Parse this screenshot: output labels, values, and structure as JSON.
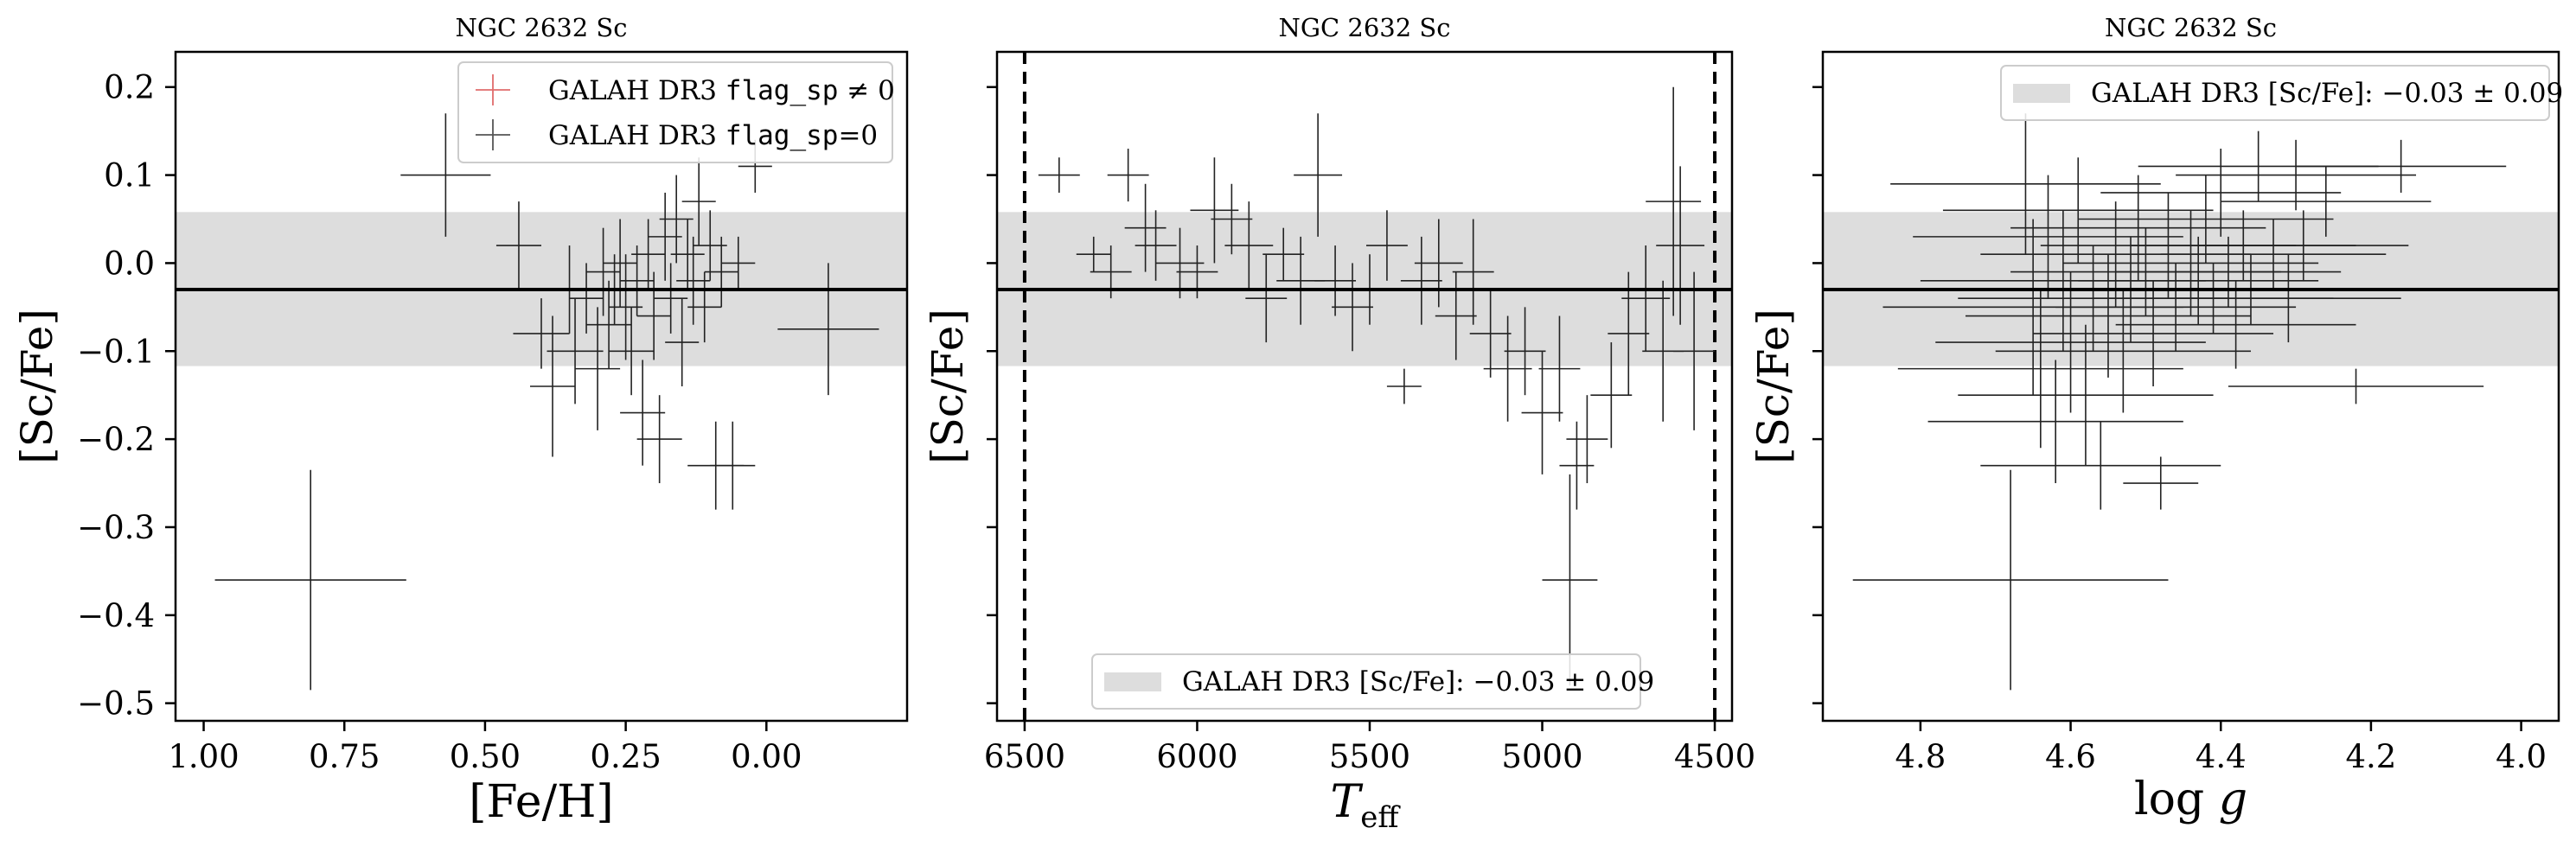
{
  "chart_data": [
    {
      "type": "scatter",
      "title": "NGC 2632 Sc",
      "xlabel": "[Fe/H]",
      "ylabel": "[Sc/Fe]",
      "xlim": [
        1.05,
        -0.25
      ],
      "ylim": [
        -0.52,
        0.24
      ],
      "xticks": [
        1.0,
        0.75,
        0.5,
        0.25,
        0.0
      ],
      "xtick_labels": [
        "1.00",
        "0.75",
        "0.50",
        "0.25",
        "0.00"
      ],
      "yticks": [
        0.2,
        0.1,
        0.0,
        -0.1,
        -0.2,
        -0.3,
        -0.4,
        -0.5
      ],
      "ytick_labels": [
        "0.2",
        "0.1",
        "0.0",
        "−0.1",
        "−0.2",
        "−0.3",
        "−0.4",
        "−0.5"
      ],
      "reference_line": -0.03,
      "band": [
        -0.117,
        0.058
      ],
      "legend": {
        "placement": "top-right",
        "entries": [
          {
            "pre": "GALAH DR3 ",
            "code": "flag_sp",
            "post": " ≠ 0",
            "color": "#e06c6c"
          },
          {
            "pre": "GALAH DR3 ",
            "code": "flag_sp",
            "post": "=0",
            "color": "#555555"
          }
        ]
      },
      "series": [
        {
          "flag_sp": 0,
          "color": "#222222",
          "points": [
            {
              "x": 0.81,
              "y": -0.36,
              "xerr": 0.17,
              "yerr": 0.125
            },
            {
              "x": 0.57,
              "y": 0.1,
              "xerr": 0.08,
              "yerr": 0.07
            },
            {
              "x": 0.44,
              "y": 0.02,
              "xerr": 0.04,
              "yerr": 0.05
            },
            {
              "x": 0.4,
              "y": -0.08,
              "xerr": 0.05,
              "yerr": 0.04
            },
            {
              "x": 0.38,
              "y": -0.14,
              "xerr": 0.04,
              "yerr": 0.08
            },
            {
              "x": 0.35,
              "y": -0.03,
              "xerr": 0.04,
              "yerr": 0.05
            },
            {
              "x": 0.34,
              "y": -0.1,
              "xerr": 0.05,
              "yerr": 0.06
            },
            {
              "x": 0.32,
              "y": -0.04,
              "xerr": 0.03,
              "yerr": 0.04
            },
            {
              "x": 0.3,
              "y": -0.12,
              "xerr": 0.04,
              "yerr": 0.07
            },
            {
              "x": 0.29,
              "y": -0.01,
              "xerr": 0.03,
              "yerr": 0.05
            },
            {
              "x": 0.28,
              "y": -0.07,
              "xerr": 0.04,
              "yerr": 0.05
            },
            {
              "x": 0.27,
              "y": -0.03,
              "xerr": 0.03,
              "yerr": 0.04
            },
            {
              "x": 0.26,
              "y": 0.0,
              "xerr": 0.03,
              "yerr": 0.05
            },
            {
              "x": 0.25,
              "y": -0.05,
              "xerr": 0.03,
              "yerr": 0.06
            },
            {
              "x": 0.24,
              "y": -0.1,
              "xerr": 0.04,
              "yerr": 0.05
            },
            {
              "x": 0.23,
              "y": -0.02,
              "xerr": 0.03,
              "yerr": 0.04
            },
            {
              "x": 0.22,
              "y": -0.17,
              "xerr": 0.04,
              "yerr": 0.06
            },
            {
              "x": 0.21,
              "y": 0.01,
              "xerr": 0.03,
              "yerr": 0.04
            },
            {
              "x": 0.2,
              "y": -0.06,
              "xerr": 0.03,
              "yerr": 0.05
            },
            {
              "x": 0.19,
              "y": -0.2,
              "xerr": 0.04,
              "yerr": 0.05
            },
            {
              "x": 0.18,
              "y": 0.03,
              "xerr": 0.03,
              "yerr": 0.05
            },
            {
              "x": 0.17,
              "y": -0.04,
              "xerr": 0.03,
              "yerr": 0.04
            },
            {
              "x": 0.16,
              "y": 0.05,
              "xerr": 0.03,
              "yerr": 0.05
            },
            {
              "x": 0.15,
              "y": -0.09,
              "xerr": 0.03,
              "yerr": 0.05
            },
            {
              "x": 0.14,
              "y": 0.01,
              "xerr": 0.03,
              "yerr": 0.04
            },
            {
              "x": 0.13,
              "y": -0.02,
              "xerr": 0.03,
              "yerr": 0.05
            },
            {
              "x": 0.12,
              "y": 0.07,
              "xerr": 0.03,
              "yerr": 0.05
            },
            {
              "x": 0.11,
              "y": -0.05,
              "xerr": 0.03,
              "yerr": 0.04
            },
            {
              "x": 0.1,
              "y": 0.02,
              "xerr": 0.03,
              "yerr": 0.04
            },
            {
              "x": 0.09,
              "y": -0.23,
              "xerr": 0.05,
              "yerr": 0.05
            },
            {
              "x": 0.08,
              "y": -0.01,
              "xerr": 0.03,
              "yerr": 0.04
            },
            {
              "x": 0.06,
              "y": -0.23,
              "xerr": 0.04,
              "yerr": 0.05
            },
            {
              "x": 0.05,
              "y": 0.0,
              "xerr": 0.03,
              "yerr": 0.03
            },
            {
              "x": 0.02,
              "y": 0.11,
              "xerr": 0.03,
              "yerr": 0.03
            },
            {
              "x": -0.11,
              "y": -0.075,
              "xerr": 0.09,
              "yerr": 0.075
            }
          ]
        }
      ]
    },
    {
      "type": "scatter",
      "title": "NGC 2632 Sc",
      "xlabel": "T_eff",
      "ylabel": "[Sc/Fe]",
      "xlim": [
        6580,
        4450
      ],
      "ylim": [
        -0.52,
        0.24
      ],
      "xticks": [
        6500,
        6000,
        5500,
        5000,
        4500
      ],
      "xtick_labels": [
        "6500",
        "6000",
        "5500",
        "5000",
        "4500"
      ],
      "yticks": [
        0.2,
        0.1,
        0.0,
        -0.1,
        -0.2,
        -0.3,
        -0.4,
        -0.5
      ],
      "reference_line": -0.03,
      "band": [
        -0.117,
        0.058
      ],
      "vlines": [
        6500,
        4500
      ],
      "legend": {
        "placement": "bottom-center",
        "entries": [
          {
            "pre": "GALAH DR3 [Sc/Fe]: ",
            "math": "−0.03 ± 0.09",
            "swatch": "#dddddd"
          }
        ]
      },
      "series": [
        {
          "flag_sp": 0,
          "color": "#222222",
          "points": [
            {
              "x": 6400,
              "y": 0.1,
              "xerr": 60,
              "yerr": 0.02
            },
            {
              "x": 6300,
              "y": 0.01,
              "xerr": 50,
              "yerr": 0.02
            },
            {
              "x": 6250,
              "y": -0.01,
              "xerr": 60,
              "yerr": 0.03
            },
            {
              "x": 6200,
              "y": 0.1,
              "xerr": 60,
              "yerr": 0.03
            },
            {
              "x": 6150,
              "y": 0.04,
              "xerr": 60,
              "yerr": 0.05
            },
            {
              "x": 6120,
              "y": 0.02,
              "xerr": 60,
              "yerr": 0.04
            },
            {
              "x": 6050,
              "y": 0.0,
              "xerr": 70,
              "yerr": 0.04
            },
            {
              "x": 6000,
              "y": -0.01,
              "xerr": 60,
              "yerr": 0.03
            },
            {
              "x": 5950,
              "y": 0.06,
              "xerr": 70,
              "yerr": 0.06
            },
            {
              "x": 5900,
              "y": 0.05,
              "xerr": 60,
              "yerr": 0.04
            },
            {
              "x": 5850,
              "y": 0.02,
              "xerr": 70,
              "yerr": 0.05
            },
            {
              "x": 5800,
              "y": -0.04,
              "xerr": 60,
              "yerr": 0.05
            },
            {
              "x": 5750,
              "y": 0.01,
              "xerr": 60,
              "yerr": 0.03
            },
            {
              "x": 5700,
              "y": -0.02,
              "xerr": 70,
              "yerr": 0.05
            },
            {
              "x": 5650,
              "y": 0.1,
              "xerr": 70,
              "yerr": 0.07
            },
            {
              "x": 5600,
              "y": -0.02,
              "xerr": 60,
              "yerr": 0.04
            },
            {
              "x": 5550,
              "y": -0.05,
              "xerr": 60,
              "yerr": 0.05
            },
            {
              "x": 5500,
              "y": -0.03,
              "xerr": 60,
              "yerr": 0.04
            },
            {
              "x": 5450,
              "y": 0.02,
              "xerr": 60,
              "yerr": 0.04
            },
            {
              "x": 5400,
              "y": -0.14,
              "xerr": 50,
              "yerr": 0.02
            },
            {
              "x": 5350,
              "y": -0.02,
              "xerr": 60,
              "yerr": 0.05
            },
            {
              "x": 5300,
              "y": 0.0,
              "xerr": 70,
              "yerr": 0.05
            },
            {
              "x": 5250,
              "y": -0.06,
              "xerr": 60,
              "yerr": 0.05
            },
            {
              "x": 5200,
              "y": -0.01,
              "xerr": 60,
              "yerr": 0.06
            },
            {
              "x": 5150,
              "y": -0.08,
              "xerr": 60,
              "yerr": 0.05
            },
            {
              "x": 5100,
              "y": -0.12,
              "xerr": 70,
              "yerr": 0.06
            },
            {
              "x": 5050,
              "y": -0.1,
              "xerr": 60,
              "yerr": 0.05
            },
            {
              "x": 5000,
              "y": -0.17,
              "xerr": 60,
              "yerr": 0.07
            },
            {
              "x": 4950,
              "y": -0.12,
              "xerr": 60,
              "yerr": 0.06
            },
            {
              "x": 4920,
              "y": -0.36,
              "xerr": 80,
              "yerr": 0.12
            },
            {
              "x": 4900,
              "y": -0.23,
              "xerr": 50,
              "yerr": 0.05
            },
            {
              "x": 4870,
              "y": -0.2,
              "xerr": 60,
              "yerr": 0.05
            },
            {
              "x": 4800,
              "y": -0.15,
              "xerr": 60,
              "yerr": 0.06
            },
            {
              "x": 4750,
              "y": -0.08,
              "xerr": 60,
              "yerr": 0.07
            },
            {
              "x": 4700,
              "y": -0.04,
              "xerr": 70,
              "yerr": 0.06
            },
            {
              "x": 4650,
              "y": -0.1,
              "xerr": 60,
              "yerr": 0.08
            },
            {
              "x": 4620,
              "y": 0.07,
              "xerr": 80,
              "yerr": 0.13
            },
            {
              "x": 4600,
              "y": 0.02,
              "xerr": 70,
              "yerr": 0.09
            },
            {
              "x": 4560,
              "y": -0.1,
              "xerr": 60,
              "yerr": 0.09
            }
          ]
        }
      ]
    },
    {
      "type": "scatter",
      "title": "NGC 2632 Sc",
      "xlabel": "log g",
      "ylabel": "[Sc/Fe]",
      "xlim": [
        4.93,
        3.95
      ],
      "ylim": [
        -0.52,
        0.24
      ],
      "xticks": [
        4.8,
        4.6,
        4.4,
        4.2,
        4.0
      ],
      "xtick_labels": [
        "4.8",
        "4.6",
        "4.4",
        "4.2",
        "4.0"
      ],
      "yticks": [
        0.2,
        0.1,
        0.0,
        -0.1,
        -0.2,
        -0.3,
        -0.4,
        -0.5
      ],
      "reference_line": -0.03,
      "band": [
        -0.117,
        0.058
      ],
      "legend": {
        "placement": "top-right",
        "entries": [
          {
            "pre": "GALAH DR3 [Sc/Fe]: ",
            "math": "−0.03 ± 0.09",
            "swatch": "#dddddd"
          }
        ]
      },
      "series": [
        {
          "flag_sp": 0,
          "color": "#222222",
          "points": [
            {
              "x": 4.68,
              "y": -0.36,
              "xerr": 0.21,
              "yerr": 0.125
            },
            {
              "x": 4.66,
              "y": 0.09,
              "xerr": 0.18,
              "yerr": 0.08
            },
            {
              "x": 4.65,
              "y": -0.05,
              "xerr": 0.2,
              "yerr": 0.1
            },
            {
              "x": 4.64,
              "y": -0.12,
              "xerr": 0.19,
              "yerr": 0.09
            },
            {
              "x": 4.63,
              "y": 0.03,
              "xerr": 0.18,
              "yerr": 0.07
            },
            {
              "x": 4.62,
              "y": -0.18,
              "xerr": 0.17,
              "yerr": 0.07
            },
            {
              "x": 4.61,
              "y": -0.02,
              "xerr": 0.19,
              "yerr": 0.08
            },
            {
              "x": 4.6,
              "y": -0.09,
              "xerr": 0.18,
              "yerr": 0.08
            },
            {
              "x": 4.59,
              "y": 0.06,
              "xerr": 0.18,
              "yerr": 0.06
            },
            {
              "x": 4.58,
              "y": -0.15,
              "xerr": 0.17,
              "yerr": 0.08
            },
            {
              "x": 4.57,
              "y": -0.04,
              "xerr": 0.18,
              "yerr": 0.06
            },
            {
              "x": 4.56,
              "y": -0.23,
              "xerr": 0.16,
              "yerr": 0.05
            },
            {
              "x": 4.55,
              "y": -0.06,
              "xerr": 0.19,
              "yerr": 0.07
            },
            {
              "x": 4.54,
              "y": 0.01,
              "xerr": 0.18,
              "yerr": 0.06
            },
            {
              "x": 4.53,
              "y": -0.1,
              "xerr": 0.17,
              "yerr": 0.07
            },
            {
              "x": 4.52,
              "y": -0.03,
              "xerr": 0.18,
              "yerr": 0.06
            },
            {
              "x": 4.51,
              "y": 0.04,
              "xerr": 0.17,
              "yerr": 0.06
            },
            {
              "x": 4.5,
              "y": -0.01,
              "xerr": 0.18,
              "yerr": 0.05
            },
            {
              "x": 4.49,
              "y": -0.08,
              "xerr": 0.16,
              "yerr": 0.06
            },
            {
              "x": 4.48,
              "y": -0.25,
              "xerr": 0.05,
              "yerr": 0.03
            },
            {
              "x": 4.47,
              "y": 0.02,
              "xerr": 0.17,
              "yerr": 0.06
            },
            {
              "x": 4.46,
              "y": -0.05,
              "xerr": 0.16,
              "yerr": 0.05
            },
            {
              "x": 4.44,
              "y": 0.0,
              "xerr": 0.17,
              "yerr": 0.06
            },
            {
              "x": 4.43,
              "y": -0.02,
              "xerr": 0.16,
              "yerr": 0.05
            },
            {
              "x": 4.42,
              "y": 0.05,
              "xerr": 0.17,
              "yerr": 0.05
            },
            {
              "x": 4.41,
              "y": -0.04,
              "xerr": 0.16,
              "yerr": 0.04
            },
            {
              "x": 4.4,
              "y": 0.08,
              "xerr": 0.16,
              "yerr": 0.05
            },
            {
              "x": 4.39,
              "y": -0.01,
              "xerr": 0.15,
              "yerr": 0.04
            },
            {
              "x": 4.38,
              "y": -0.07,
              "xerr": 0.16,
              "yerr": 0.05
            },
            {
              "x": 4.37,
              "y": 0.02,
              "xerr": 0.15,
              "yerr": 0.04
            },
            {
              "x": 4.36,
              "y": -0.03,
              "xerr": 0.15,
              "yerr": 0.04
            },
            {
              "x": 4.35,
              "y": 0.11,
              "xerr": 0.16,
              "yerr": 0.04
            },
            {
              "x": 4.33,
              "y": 0.01,
              "xerr": 0.15,
              "yerr": 0.04
            },
            {
              "x": 4.31,
              "y": -0.04,
              "xerr": 0.15,
              "yerr": 0.05
            },
            {
              "x": 4.3,
              "y": 0.1,
              "xerr": 0.16,
              "yerr": 0.04
            },
            {
              "x": 4.29,
              "y": 0.02,
              "xerr": 0.14,
              "yerr": 0.04
            },
            {
              "x": 4.26,
              "y": 0.07,
              "xerr": 0.14,
              "yerr": 0.04
            },
            {
              "x": 4.22,
              "y": -0.14,
              "xerr": 0.17,
              "yerr": 0.02
            },
            {
              "x": 4.16,
              "y": 0.11,
              "xerr": 0.14,
              "yerr": 0.03
            }
          ]
        }
      ]
    }
  ]
}
